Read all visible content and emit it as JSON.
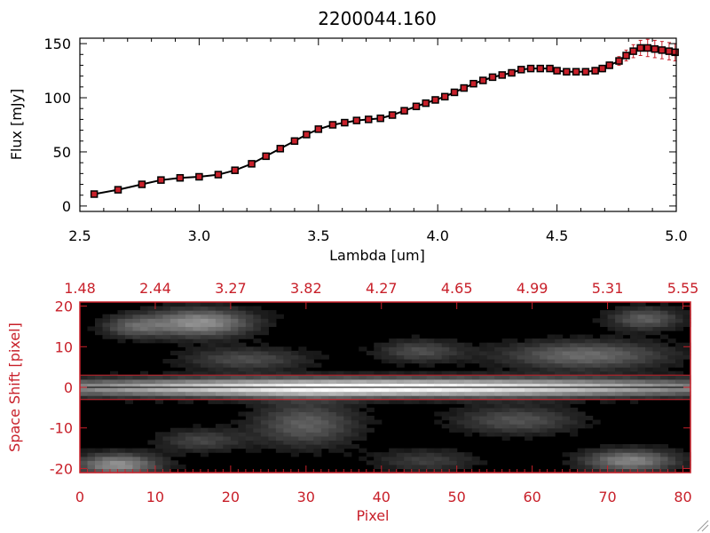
{
  "colors": {
    "red": "#c8202a",
    "black": "#000000",
    "white": "#ffffff"
  },
  "chart_data": [
    {
      "type": "line",
      "title": "2200044.160",
      "xlabel": "Lambda [um]",
      "ylabel": "Flux [mJy]",
      "xlim": [
        2.5,
        5.0
      ],
      "ylim": [
        -5,
        155
      ],
      "x_ticks": [
        "2.5",
        "3.0",
        "3.5",
        "4.0",
        "4.5",
        "5.0"
      ],
      "y_ticks": [
        "0",
        "50",
        "100",
        "150"
      ],
      "series": [
        {
          "marker": "filled-square",
          "marker_fill": "#c8202a",
          "error_bar_color": "#c8202a",
          "x": [
            2.56,
            2.66,
            2.76,
            2.84,
            2.92,
            3.0,
            3.08,
            3.15,
            3.22,
            3.28,
            3.34,
            3.4,
            3.45,
            3.5,
            3.56,
            3.61,
            3.66,
            3.71,
            3.76,
            3.81,
            3.86,
            3.91,
            3.95,
            3.99,
            4.03,
            4.07,
            4.11,
            4.15,
            4.19,
            4.23,
            4.27,
            4.31,
            4.35,
            4.39,
            4.43,
            4.47,
            4.5,
            4.54,
            4.58,
            4.62,
            4.66,
            4.69,
            4.72,
            4.76,
            4.79,
            4.82,
            4.85,
            4.88,
            4.91,
            4.94,
            4.97,
            4.995
          ],
          "y": [
            11,
            15,
            20,
            24,
            26,
            27,
            29,
            33,
            39,
            46,
            53,
            60,
            66,
            71,
            75,
            77,
            79,
            80,
            81,
            84,
            88,
            92,
            95,
            98,
            101,
            105,
            109,
            113,
            116,
            119,
            121,
            123,
            126,
            127,
            127,
            127,
            125,
            124,
            124,
            124,
            125,
            127,
            130,
            134,
            139,
            143,
            146,
            146,
            145,
            144,
            143,
            142
          ],
          "yerr": [
            1.5,
            1.5,
            1.5,
            1.5,
            1.5,
            1.5,
            1.5,
            1.5,
            1.5,
            1.5,
            1.5,
            1.5,
            1.5,
            1.5,
            1.5,
            1.5,
            1.5,
            1.5,
            1.5,
            1.5,
            1.5,
            1.5,
            1.5,
            1.5,
            1.5,
            1.5,
            1.5,
            1.5,
            1.5,
            1.5,
            2,
            2,
            2,
            2,
            2,
            2,
            2,
            2,
            2,
            3,
            3,
            3,
            3,
            4,
            5,
            6,
            7,
            8,
            8,
            8,
            8,
            8
          ]
        }
      ]
    },
    {
      "type": "heatmap",
      "colormap": "grayscale",
      "xlabel": "Pixel",
      "ylabel": "Space Shift [pixel]",
      "xlim": [
        0,
        81
      ],
      "ylim": [
        -21,
        21
      ],
      "x_ticks": [
        "0",
        "10",
        "20",
        "30",
        "40",
        "50",
        "60",
        "70",
        "80"
      ],
      "y_ticks": [
        "-20",
        "-10",
        "0",
        "10",
        "20"
      ],
      "top_ticks": [
        "1.48",
        "2.44",
        "3.27",
        "3.82",
        "4.27",
        "4.65",
        "4.99",
        "5.31",
        "5.55"
      ],
      "extraction_aperture": [
        -3,
        3
      ],
      "trace_center": 0,
      "features": [
        {
          "x": 40,
          "y": 0,
          "sx": 34,
          "sy": 1.6,
          "amp": 1.0
        },
        {
          "x": 16,
          "y": 16,
          "sx": 5,
          "sy": 2.5,
          "amp": 0.55
        },
        {
          "x": 7,
          "y": 15,
          "sx": 3,
          "sy": 2,
          "amp": 0.3
        },
        {
          "x": 75,
          "y": 17,
          "sx": 3.5,
          "sy": 2,
          "amp": 0.35
        },
        {
          "x": 67,
          "y": 8,
          "sx": 8,
          "sy": 2.5,
          "amp": 0.4
        },
        {
          "x": 22,
          "y": 7,
          "sx": 6,
          "sy": 2,
          "amp": 0.28
        },
        {
          "x": 45,
          "y": 9,
          "sx": 4,
          "sy": 2,
          "amp": 0.28
        },
        {
          "x": 30,
          "y": -9,
          "sx": 5,
          "sy": 4,
          "amp": 0.35
        },
        {
          "x": 58,
          "y": -8,
          "sx": 6,
          "sy": 2.5,
          "amp": 0.3
        },
        {
          "x": 5,
          "y": -19,
          "sx": 4,
          "sy": 2,
          "amp": 0.55
        },
        {
          "x": 73,
          "y": -18,
          "sx": 4.5,
          "sy": 2,
          "amp": 0.5
        },
        {
          "x": 16,
          "y": -13,
          "sx": 4,
          "sy": 2,
          "amp": 0.25
        },
        {
          "x": 46,
          "y": -18,
          "sx": 5,
          "sy": 2,
          "amp": 0.22
        }
      ]
    }
  ]
}
